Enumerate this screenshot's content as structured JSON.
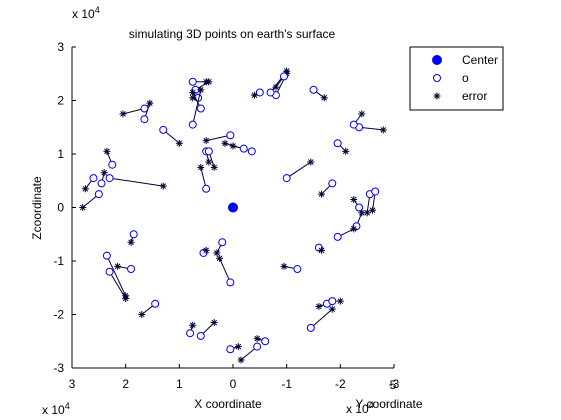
{
  "chart_data": {
    "type": "scatter",
    "title": "simulating 3D points on earth's surface",
    "xlabel": "X coordinate",
    "ylabel": "Zcoordinate",
    "zlabel": "Y coordinate",
    "x_exponent_label": "x 10",
    "x_exponent_power": "4",
    "y_exponent_label": "x 10",
    "y_exponent_power": "4",
    "z_exponent_label": "x 10",
    "z_exponent_power": "4",
    "xlim": [
      3,
      -3
    ],
    "zlim": [
      -3,
      3
    ],
    "x_ticks": [
      "3",
      "2",
      "1",
      "0",
      "-1",
      "-2",
      "-3"
    ],
    "z_ticks": [
      "3",
      "2",
      "1",
      "0",
      "-1",
      "-2",
      "-3"
    ],
    "y_tick_fragment": "5",
    "legend": {
      "position": "top-right",
      "entries": [
        {
          "label": "Center",
          "marker": "filled-circle"
        },
        {
          "label": "o",
          "marker": "open-circle"
        },
        {
          "label": "error",
          "marker": "star"
        }
      ]
    },
    "colors": {
      "marker": "#0000ff",
      "error": "#000033",
      "axis": "#000000"
    },
    "center": {
      "x": 0,
      "z": 0
    },
    "points": [
      {
        "ox": 0.75,
        "oz": 2.35,
        "ex": 0.5,
        "ez": 2.35
      },
      {
        "ox": 0.7,
        "oz": 2.2,
        "ex": 0.45,
        "ez": 2.35
      },
      {
        "ox": 0.65,
        "oz": 2.05,
        "ex": 0.75,
        "ez": 2.05
      },
      {
        "ox": 0.6,
        "oz": 1.85,
        "ex": 0.75,
        "ez": 2.15
      },
      {
        "ox": 0.75,
        "oz": 1.55,
        "ex": 0.6,
        "ez": 2.2
      },
      {
        "ox": -0.8,
        "oz": 2.1,
        "ex": -1.0,
        "ez": 2.5
      },
      {
        "ox": -0.7,
        "oz": 2.15,
        "ex": -1.0,
        "ez": 2.55
      },
      {
        "ox": -0.5,
        "oz": 2.15,
        "ex": -0.4,
        "ez": 2.1
      },
      {
        "ox": -0.95,
        "oz": 2.45,
        "ex": -0.8,
        "ez": 2.25
      },
      {
        "ox": -1.5,
        "oz": 2.2,
        "ex": -1.7,
        "ez": 2.05
      },
      {
        "ox": 1.65,
        "oz": 1.85,
        "ex": 2.05,
        "ez": 1.75
      },
      {
        "ox": 1.65,
        "oz": 1.65,
        "ex": 1.55,
        "ez": 1.95
      },
      {
        "ox": 1.3,
        "oz": 1.45,
        "ex": 1.0,
        "ez": 1.2
      },
      {
        "ox": 0.5,
        "oz": 1.05,
        "ex": 0.45,
        "ez": 0.85
      },
      {
        "ox": 0.45,
        "oz": 1.05,
        "ex": 0.35,
        "ez": 0.75
      },
      {
        "ox": 0.05,
        "oz": 1.35,
        "ex": 0.5,
        "ez": 1.25
      },
      {
        "ox": -0.35,
        "oz": 1.05,
        "ex": 0.15,
        "ez": 1.2
      },
      {
        "ox": -0.2,
        "oz": 1.1,
        "ex": 0.0,
        "ez": 1.15
      },
      {
        "ox": 0.5,
        "oz": 0.35,
        "ex": 0.6,
        "ez": 0.75
      },
      {
        "ox": 2.25,
        "oz": 0.8,
        "ex": 2.35,
        "ez": 1.05
      },
      {
        "ox": 2.3,
        "oz": 0.55,
        "ex": 1.3,
        "ez": 0.4
      },
      {
        "ox": 2.6,
        "oz": 0.55,
        "ex": 2.75,
        "ez": 0.35
      },
      {
        "ox": 2.45,
        "oz": 0.45,
        "ex": 2.4,
        "ez": 0.65
      },
      {
        "ox": 2.5,
        "oz": 0.25,
        "ex": 2.8,
        "ez": 0.0
      },
      {
        "ox": -2.35,
        "oz": 1.5,
        "ex": -2.8,
        "ez": 1.45
      },
      {
        "ox": -2.25,
        "oz": 1.55,
        "ex": -2.4,
        "ez": 1.75
      },
      {
        "ox": -1.95,
        "oz": 1.2,
        "ex": -2.1,
        "ez": 1.05
      },
      {
        "ox": -1.0,
        "oz": 0.55,
        "ex": -1.45,
        "ez": 0.85
      },
      {
        "ox": -1.85,
        "oz": 0.45,
        "ex": -1.65,
        "ez": 0.25
      },
      {
        "ox": -2.55,
        "oz": 0.25,
        "ex": -2.5,
        "ez": -0.1
      },
      {
        "ox": -2.65,
        "oz": 0.3,
        "ex": -2.6,
        "ez": -0.05
      },
      {
        "ox": -2.35,
        "oz": 0.0,
        "ex": -2.25,
        "ez": 0.15
      },
      {
        "ox": -2.3,
        "oz": -0.35,
        "ex": -2.4,
        "ez": -0.1
      },
      {
        "ox": -1.95,
        "oz": -0.55,
        "ex": -2.25,
        "ez": -0.4
      },
      {
        "ox": -1.6,
        "oz": -0.75,
        "ex": -1.65,
        "ez": -0.8
      },
      {
        "ox": -1.2,
        "oz": -1.15,
        "ex": -0.95,
        "ez": -1.1
      },
      {
        "ox": 0.55,
        "oz": -0.85,
        "ex": 0.5,
        "ez": -0.8
      },
      {
        "ox": 0.2,
        "oz": -0.65,
        "ex": 0.3,
        "ez": -0.85
      },
      {
        "ox": 0.05,
        "oz": -1.4,
        "ex": 0.25,
        "ez": -0.95
      },
      {
        "ox": 1.85,
        "oz": -0.5,
        "ex": 1.9,
        "ez": -0.65
      },
      {
        "ox": 1.9,
        "oz": -1.15,
        "ex": 2.15,
        "ez": -1.1
      },
      {
        "ox": 2.35,
        "oz": -0.9,
        "ex": 2.0,
        "ez": -1.65
      },
      {
        "ox": 2.3,
        "oz": -1.2,
        "ex": 2.0,
        "ez": -1.7
      },
      {
        "ox": 1.45,
        "oz": -1.8,
        "ex": 1.7,
        "ez": -2.0
      },
      {
        "ox": 0.8,
        "oz": -2.35,
        "ex": 0.75,
        "ez": -2.2
      },
      {
        "ox": 0.6,
        "oz": -2.4,
        "ex": 0.35,
        "ez": -2.15
      },
      {
        "ox": -0.6,
        "oz": -2.5,
        "ex": -0.45,
        "ez": -2.45
      },
      {
        "ox": -0.45,
        "oz": -2.6,
        "ex": -0.15,
        "ez": -2.85
      },
      {
        "ox": 0.05,
        "oz": -2.65,
        "ex": -0.1,
        "ez": -2.6
      },
      {
        "ox": -1.45,
        "oz": -2.25,
        "ex": -1.85,
        "ez": -1.9
      },
      {
        "ox": -1.75,
        "oz": -1.8,
        "ex": -1.6,
        "ez": -1.85
      },
      {
        "ox": -1.85,
        "oz": -1.75,
        "ex": -2.0,
        "ez": -1.75
      }
    ]
  }
}
